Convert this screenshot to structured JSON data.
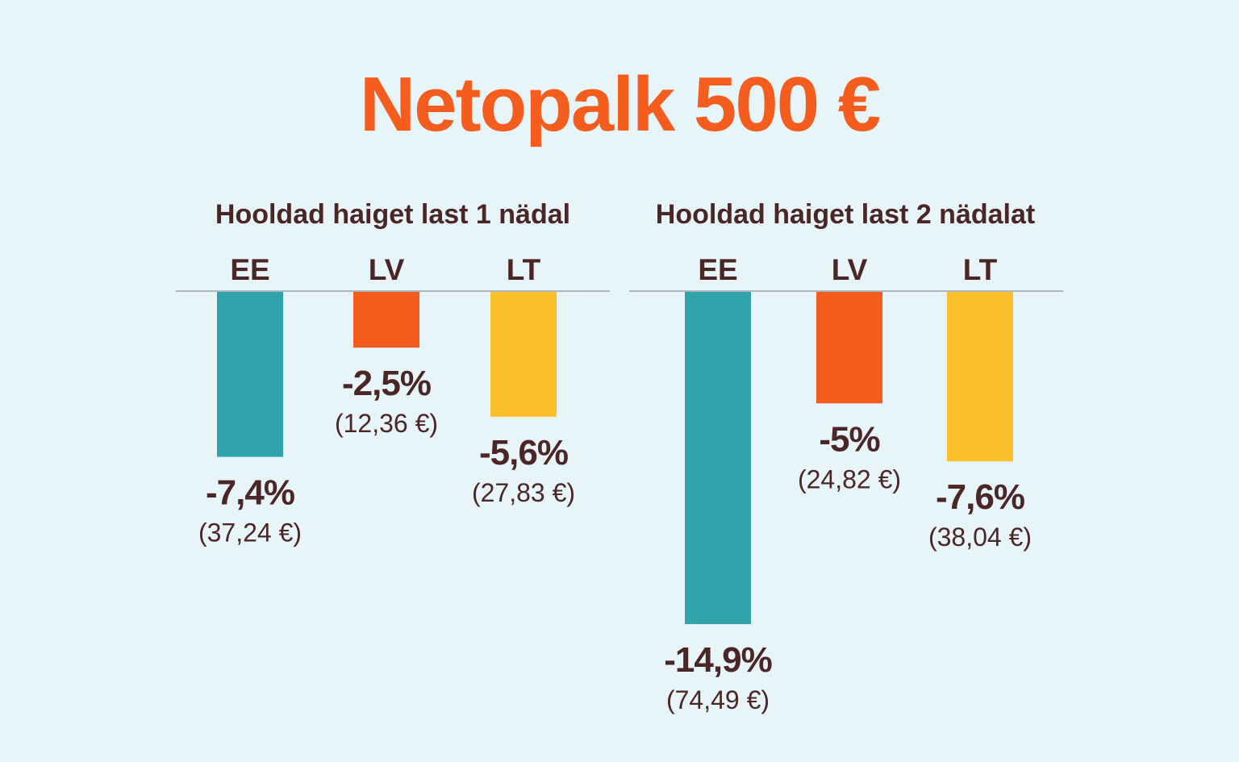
{
  "title": "Netopalk 500 €",
  "colors": {
    "background": "#e7f4f8",
    "title": "#f45d1e",
    "text": "#4a2626",
    "baseline": "#9aa2a6",
    "EE": "#31a3ad",
    "LV": "#f45d1e",
    "LT": "#fcc02d"
  },
  "chart_data": [
    {
      "type": "bar",
      "title": "Hooldad haiget last 1 nädal",
      "categories": [
        "EE",
        "LV",
        "LT"
      ],
      "values": [
        -7.4,
        -2.5,
        -5.6
      ],
      "value_labels": [
        "-7,4%",
        "-2,5%",
        "-5,6%"
      ],
      "amount_labels": [
        "(37,24 €)",
        "(12,36 €)",
        "(27,83 €)"
      ],
      "ylim": [
        -14.9,
        0
      ],
      "grid": false
    },
    {
      "type": "bar",
      "title": "Hooldad haiget last 2 nädalat",
      "categories": [
        "EE",
        "LV",
        "LT"
      ],
      "values": [
        -14.9,
        -5,
        -7.6
      ],
      "value_labels": [
        "-14,9%",
        "-5%",
        "-7,6%"
      ],
      "amount_labels": [
        "(74,49 €)",
        "(24,82 €)",
        "(38,04 €)"
      ],
      "ylim": [
        -14.9,
        0
      ],
      "grid": false
    }
  ]
}
